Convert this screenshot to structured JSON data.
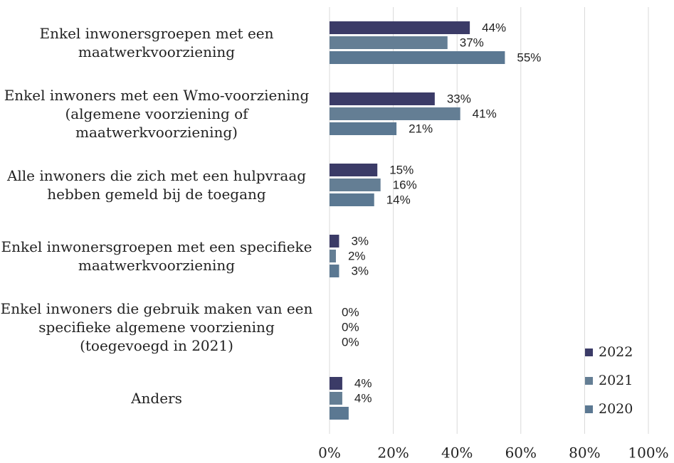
{
  "chart_data": {
    "type": "bar",
    "orientation": "horizontal",
    "categories": [
      "Enkel inwonersgroepen met een maatwerkvoorziening",
      "Enkel inwoners met een Wmo-voorziening (algemene voorziening of maatwerkvoorziening)",
      "Alle inwoners die zich met een hulpvraag hebben gemeld bij de toegang",
      "Enkel inwonersgroepen met een specifieke maatwerkvoorziening",
      "Enkel inwoners die gebruik maken van een specifieke algemene voorziening (toegevoegd in 2021)",
      "Anders"
    ],
    "series": [
      {
        "name": "2022",
        "color": "#3b3b67",
        "values": [
          44,
          33,
          15,
          3,
          0,
          4
        ],
        "value_labels": [
          "44%",
          "33%",
          "15%",
          "3%",
          "0%",
          "4%"
        ]
      },
      {
        "name": "2021",
        "color": "#647e94",
        "values": [
          37,
          41,
          16,
          2,
          0,
          4
        ],
        "value_labels": [
          "37%",
          "41%",
          "16%",
          "2%",
          "0%",
          "4%"
        ]
      },
      {
        "name": "2020",
        "color": "#5b7892",
        "values": [
          55,
          21,
          14,
          3,
          0,
          6
        ],
        "value_labels": [
          "55%",
          "21%",
          "14%",
          "3%",
          "0%",
          null
        ]
      }
    ],
    "xlim": [
      0,
      100
    ],
    "xticks": [
      {
        "value": 0,
        "label": "0%"
      },
      {
        "value": 20,
        "label": "20%"
      },
      {
        "value": 40,
        "label": "40%"
      },
      {
        "value": 60,
        "label": "60%"
      },
      {
        "value": 80,
        "label": "80%"
      },
      {
        "value": 100,
        "label": "100%"
      }
    ],
    "grid": true,
    "legend": "lower right"
  }
}
